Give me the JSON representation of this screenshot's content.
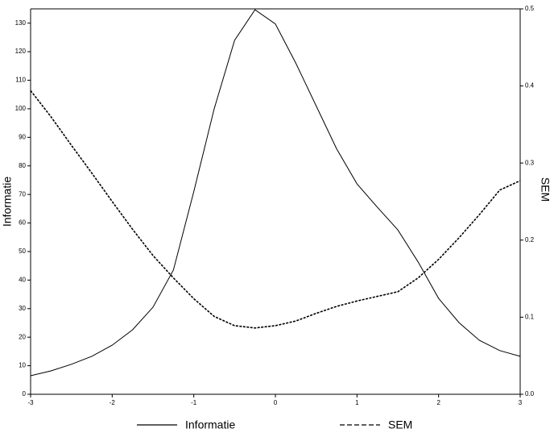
{
  "chart_data": {
    "type": "line",
    "x": [
      -3,
      -2.75,
      -2.5,
      -2.25,
      -2,
      -1.75,
      -1.5,
      -1.25,
      -1,
      -0.75,
      -0.5,
      -0.25,
      0,
      0.25,
      0.5,
      0.75,
      1,
      1.25,
      1.5,
      1.75,
      2,
      2.25,
      2.5,
      2.75,
      3
    ],
    "series": [
      {
        "name": "Informatie",
        "color": "#000000",
        "dash": "solid",
        "values": [
          6.5,
          8.2,
          10.5,
          13.3,
          17.2,
          22.6,
          30.5,
          43.5,
          71,
          100,
          124,
          134.7,
          129.7,
          116,
          101,
          86,
          73.7,
          65.5,
          57.6,
          46.3,
          33.6,
          25.1,
          18.9,
          15.3,
          13.3
        ]
      },
      {
        "name": "SEM",
        "color": "#000000",
        "dash": "dashed",
        "axis": "y2",
        "values": [
          0.394,
          0.36,
          0.323,
          0.287,
          0.25,
          0.214,
          0.18,
          0.151,
          0.124,
          0.101,
          0.089,
          0.086,
          0.089,
          0.095,
          0.105,
          0.114,
          0.121,
          0.127,
          0.133,
          0.151,
          0.175,
          0.203,
          0.233,
          0.265,
          0.277
        ]
      }
    ],
    "xlim": [
      -3,
      3
    ],
    "xticks": [
      -3,
      -2,
      -1,
      0,
      1,
      2,
      3
    ],
    "ylim": [
      0,
      135
    ],
    "yticks": [
      0,
      10,
      20,
      30,
      40,
      50,
      60,
      70,
      80,
      90,
      100,
      110,
      120,
      130
    ],
    "y2lim": [
      0,
      0.5
    ],
    "y2ticks": [
      {
        "value": 0,
        "label": "0.0"
      },
      0.1,
      0.2,
      0.3,
      0.4,
      0.5
    ],
    "ylabel": "Informatie",
    "y2label": "SEM",
    "legend": "bottom"
  }
}
